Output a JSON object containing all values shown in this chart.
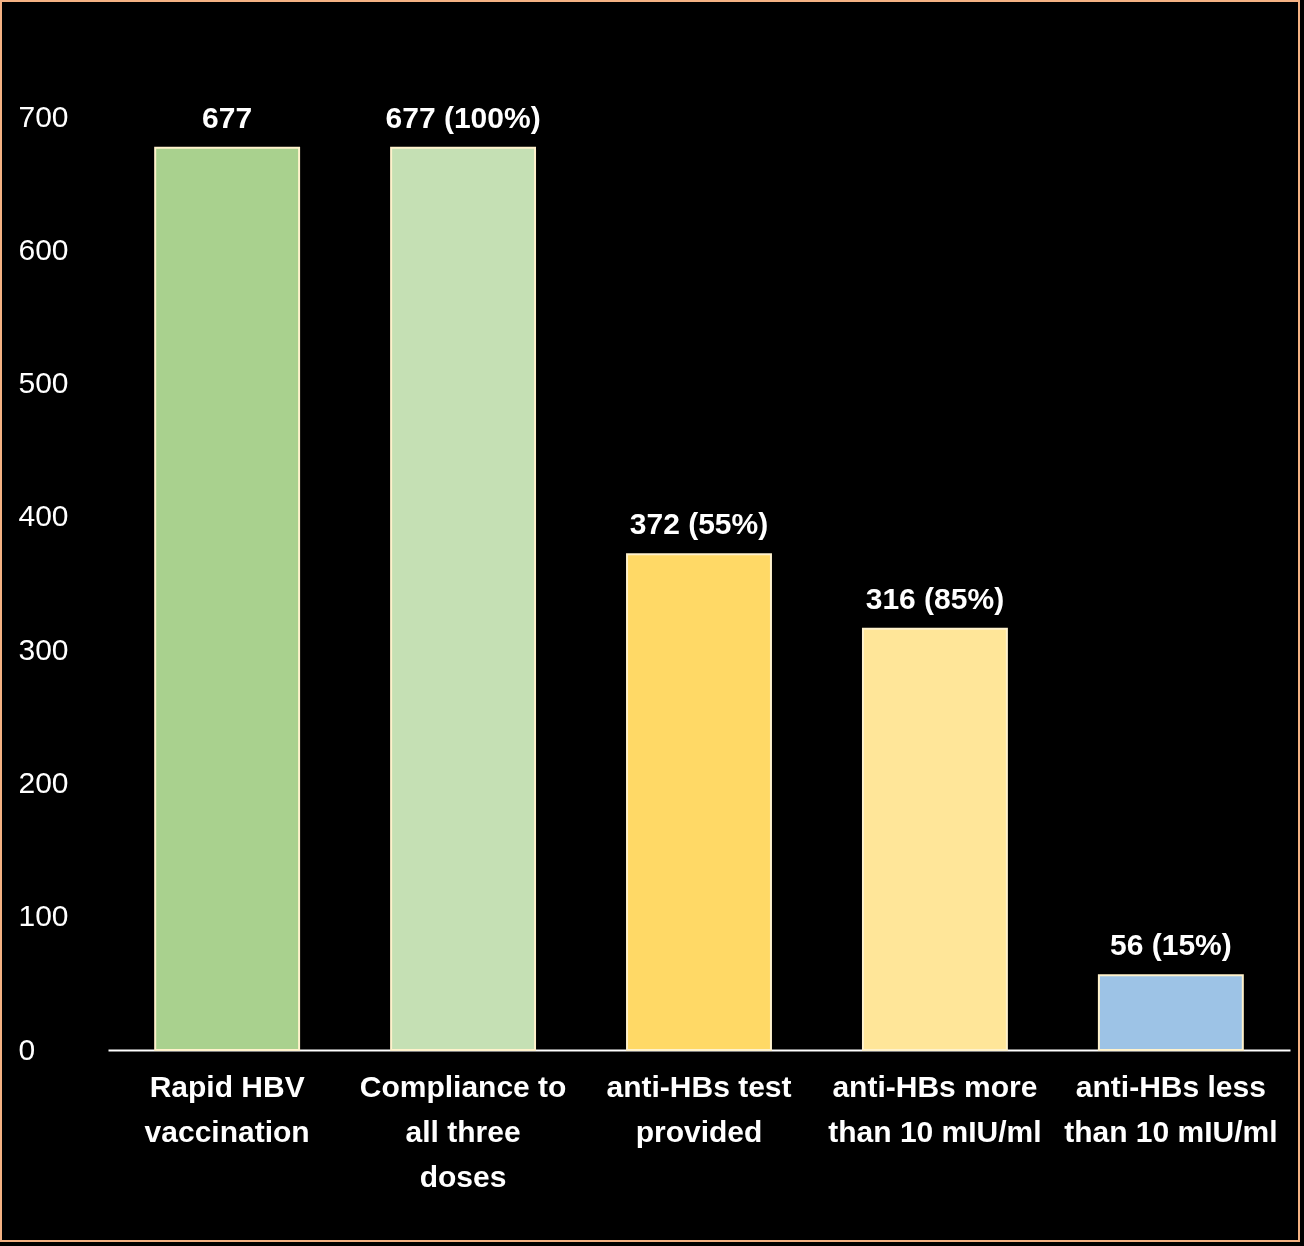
{
  "chart_data": {
    "type": "bar",
    "categories": [
      "Rapid HBV vaccination",
      "Compliance to all three doses",
      "anti-HBs test provided",
      "anti-HBs more than 10 mIU/ml",
      "anti-HBs less than 10 mIU/ml"
    ],
    "values": [
      677,
      677,
      372,
      316,
      56
    ],
    "colors": [
      "#a9d18e",
      "#c5e0b4",
      "#ffd966",
      "#ffe699",
      "#9dc3e6"
    ],
    "value_labels": [
      "677",
      "677 (100%)",
      "372 (55%)",
      "316 (85%)",
      "56 (15%)"
    ],
    "ylim": [
      0,
      700
    ],
    "yticks": [
      0,
      100,
      200,
      300,
      400,
      500,
      600,
      700
    ]
  }
}
